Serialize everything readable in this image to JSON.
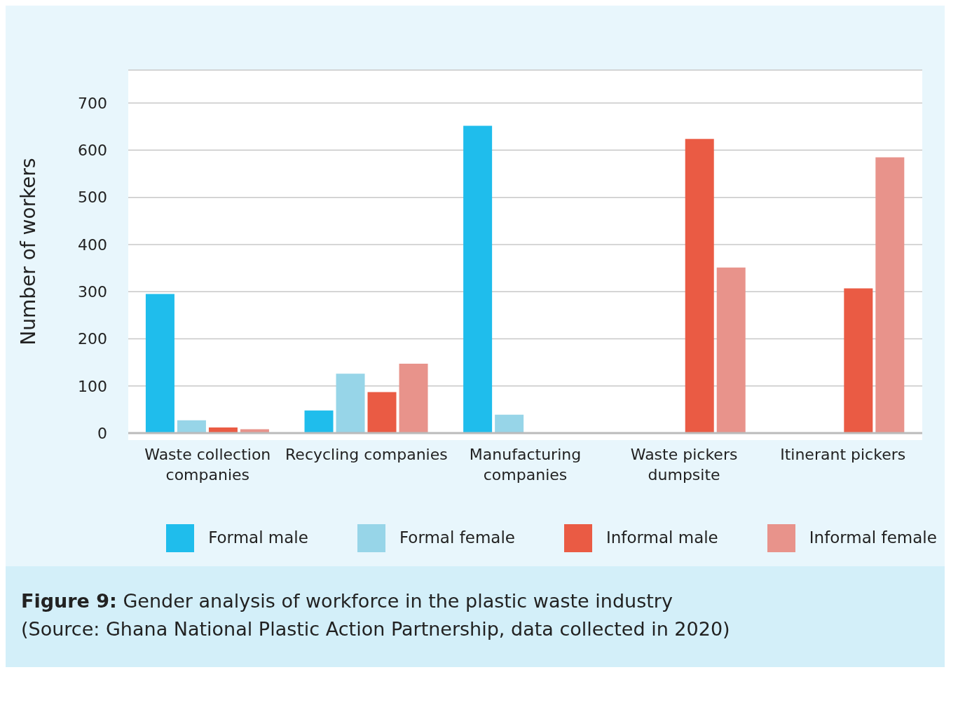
{
  "chart_data": {
    "type": "bar",
    "categories": [
      "Waste collection companies",
      "Recycling companies",
      "Manufacturing companies",
      "Waste pickers dumpsite",
      "Itinerant pickers"
    ],
    "series": [
      {
        "name": "Formal male",
        "color": "#1fbdec",
        "values": [
          295,
          48,
          652,
          null,
          null
        ]
      },
      {
        "name": "Formal female",
        "color": "#97d5e8",
        "values": [
          27,
          126,
          39,
          null,
          null
        ]
      },
      {
        "name": "Informal male",
        "color": "#ea5b44",
        "values": [
          12,
          87,
          null,
          624,
          307
        ]
      },
      {
        "name": "Informal female",
        "color": "#e8938b",
        "values": [
          8,
          147,
          null,
          351,
          585
        ]
      }
    ],
    "ylabel": "Number of workers",
    "ylim": [
      0,
      770
    ],
    "yticks": [
      0,
      100,
      200,
      300,
      400,
      500,
      600,
      700
    ],
    "grid": "y",
    "legend": "bottom",
    "title": "Figure 9: Gender analysis of workforce in the plastic waste industry",
    "annotations": [
      "(Source: Ghana National Plastic Action Partnership, data collected in 2020)"
    ]
  }
}
